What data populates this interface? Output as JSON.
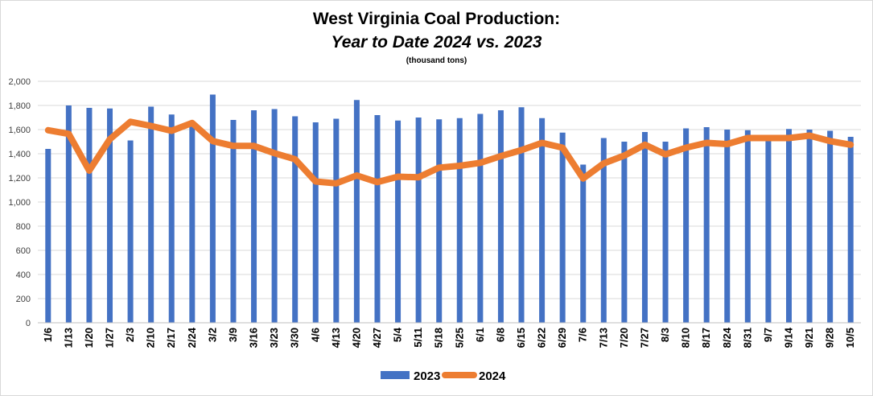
{
  "chart_data": {
    "type": "bar+line",
    "title": "West Virginia Coal Production:",
    "subtitle": "Year to Date 2024 vs. 2023",
    "units_note": "(thousand tons)",
    "ylim": [
      0,
      2000
    ],
    "yticks": [
      "0",
      "200",
      "400",
      "600",
      "800",
      "1,000",
      "1,200",
      "1,400",
      "1,600",
      "1,800",
      "2,000"
    ],
    "ytick_values": [
      0,
      200,
      400,
      600,
      800,
      1000,
      1200,
      1400,
      1600,
      1800,
      2000
    ],
    "grid": true,
    "legend_position": "bottom",
    "categories": [
      "1/6",
      "1/13",
      "1/20",
      "1/27",
      "2/3",
      "2/10",
      "2/17",
      "2/24",
      "3/2",
      "3/9",
      "3/16",
      "3/23",
      "3/30",
      "4/6",
      "4/13",
      "4/20",
      "4/27",
      "5/4",
      "5/11",
      "5/18",
      "5/25",
      "6/1",
      "6/8",
      "6/15",
      "6/22",
      "6/29",
      "7/6",
      "7/13",
      "7/20",
      "7/27",
      "8/3",
      "8/10",
      "8/17",
      "8/24",
      "8/31",
      "9/7",
      "9/14",
      "9/21",
      "9/28",
      "10/5"
    ],
    "series": [
      {
        "name": "2023",
        "type": "bar",
        "color": "#4472c4",
        "values": [
          1440,
          1800,
          1780,
          1775,
          1510,
          1790,
          1725,
          1670,
          1890,
          1680,
          1760,
          1770,
          1710,
          1660,
          1690,
          1845,
          1720,
          1675,
          1700,
          1685,
          1695,
          1730,
          1760,
          1785,
          1695,
          1575,
          1310,
          1530,
          1500,
          1580,
          1500,
          1610,
          1620,
          1600,
          1595,
          1540,
          1605,
          1600,
          1590,
          1540
        ]
      },
      {
        "name": "2024",
        "type": "line",
        "color": "#ed7d31",
        "values": [
          1595,
          1565,
          1260,
          1520,
          1665,
          1630,
          1590,
          1655,
          1505,
          1465,
          1465,
          1405,
          1355,
          1170,
          1155,
          1220,
          1165,
          1210,
          1205,
          1285,
          1300,
          1325,
          1380,
          1430,
          1490,
          1450,
          1195,
          1320,
          1385,
          1475,
          1395,
          1450,
          1490,
          1480,
          1530,
          1530,
          1530,
          1550,
          1505,
          1475
        ]
      }
    ]
  }
}
